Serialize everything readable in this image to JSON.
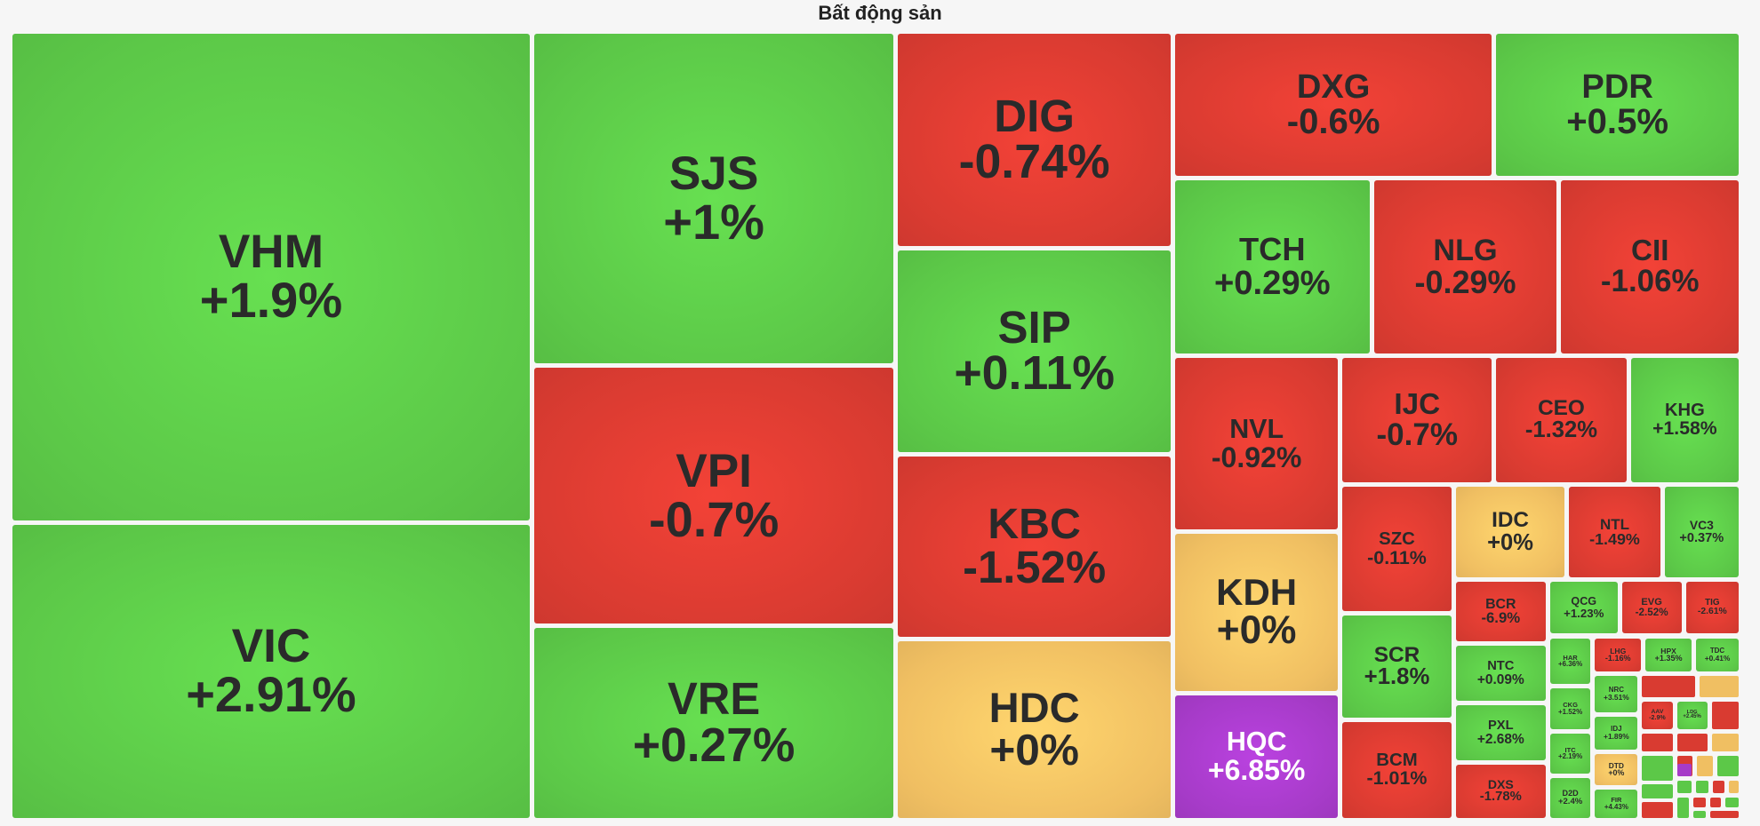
{
  "chart_data": {
    "type": "treemap",
    "title": "Bất động sản",
    "categories": [
      "VHM",
      "VIC",
      "SJS",
      "VPI",
      "VRE",
      "DIG",
      "SIP",
      "KBC",
      "HDC",
      "DXG",
      "PDR",
      "TCH",
      "NLG",
      "CII",
      "NVL",
      "KDH",
      "HQC",
      "IJC",
      "CEO",
      "KHG",
      "SZC",
      "SCR",
      "BCM",
      "IDC",
      "NTL",
      "VC3",
      "BCR",
      "NTC",
      "PXL",
      "DXS",
      "QCG",
      "EVG",
      "TIG",
      "HAR",
      "CKG",
      "ITC",
      "D2D",
      "LHG",
      "HPX",
      "TDC",
      "NRC",
      "IDJ",
      "DTD",
      "FIR",
      "AAV",
      "LDG"
    ],
    "values": [
      1.9,
      2.91,
      1,
      -0.7,
      0.27,
      -0.74,
      0.11,
      -1.52,
      0,
      -0.6,
      0.5,
      0.29,
      -0.29,
      -1.06,
      -0.92,
      0,
      6.85,
      -0.7,
      -1.32,
      1.58,
      -0.11,
      1.8,
      -1.01,
      0,
      -1.49,
      0.37,
      -6.9,
      0.09,
      2.68,
      -1.78,
      1.23,
      -2.52,
      -2.61,
      6.36,
      1.52,
      2.19,
      2.4,
      -1.16,
      1.35,
      0.41,
      3.51,
      1.89,
      0,
      4.43,
      -2.9,
      2.45
    ],
    "value_labels": [
      "+1.9%",
      "+2.91%",
      "+1%",
      "-0.7%",
      "+0.27%",
      "-0.74%",
      "+0.11%",
      "-1.52%",
      "+0%",
      "-0.6%",
      "+0.5%",
      "+0.29%",
      "-0.29%",
      "-1.06%",
      "-0.92%",
      "+0%",
      "+6.85%",
      "-0.7%",
      "-1.32%",
      "+1.58%",
      "-0.11%",
      "+1.8%",
      "-1.01%",
      "+0%",
      "-1.49%",
      "+0.37%",
      "-6.9%",
      "+0.09%",
      "+2.68%",
      "-1.78%",
      "+1.23%",
      "-2.52%",
      "-2.61%",
      "+6.36%",
      "+1.52%",
      "+2.19%",
      "+2.4%",
      "-1.16%",
      "+1.35%",
      "+0.41%",
      "+3.51%",
      "+1.89%",
      "+0%",
      "+4.43%",
      "-2.9%",
      "+2.45%"
    ],
    "colors": {
      "up": "#5cc848",
      "down": "#d93b31",
      "flat": "#f0bf62",
      "ceiling": "#a63bc8",
      "floor": "#3fb6e0"
    },
    "ceiling": 6.85
  }
}
